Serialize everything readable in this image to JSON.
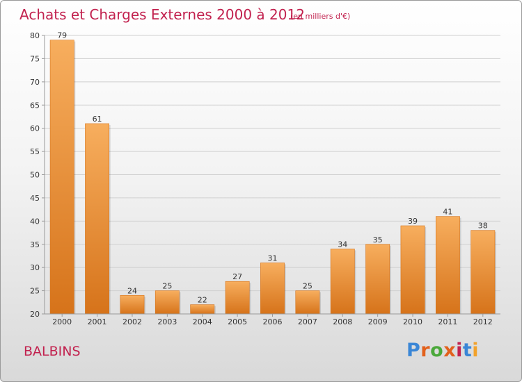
{
  "header": {
    "title": "Achats et Charges Externes 2000 à 2012",
    "unit": "(en milliers d'€)"
  },
  "location": {
    "name": "BALBINS"
  },
  "brand": {
    "logo_text": "Proxiti",
    "colors": [
      "#3a86d6",
      "#e2611c",
      "#4aa83a",
      "#e2611c",
      "#c2224f",
      "#3a86d6",
      "#f2a22b"
    ]
  },
  "colors": {
    "bar": "#f0922f",
    "bar_light": "#f7ae5e",
    "bar_dark": "#d6731a",
    "title": "#c2224f"
  },
  "chart_data": {
    "type": "bar",
    "title": "Achats et Charges Externes 2000 à 2012",
    "subtitle": "(en milliers d'€)",
    "xlabel": "",
    "ylabel": "",
    "categories": [
      "2000",
      "2001",
      "2002",
      "2003",
      "2004",
      "2005",
      "2006",
      "2007",
      "2008",
      "2009",
      "2010",
      "2011",
      "2012"
    ],
    "values": [
      79,
      61,
      24,
      25,
      22,
      27,
      31,
      25,
      34,
      35,
      39,
      41,
      38
    ],
    "ylim": [
      20,
      80
    ],
    "yticks": [
      20,
      25,
      30,
      35,
      40,
      45,
      50,
      55,
      60,
      65,
      70,
      75,
      80
    ],
    "grid": true,
    "legend": "none"
  }
}
